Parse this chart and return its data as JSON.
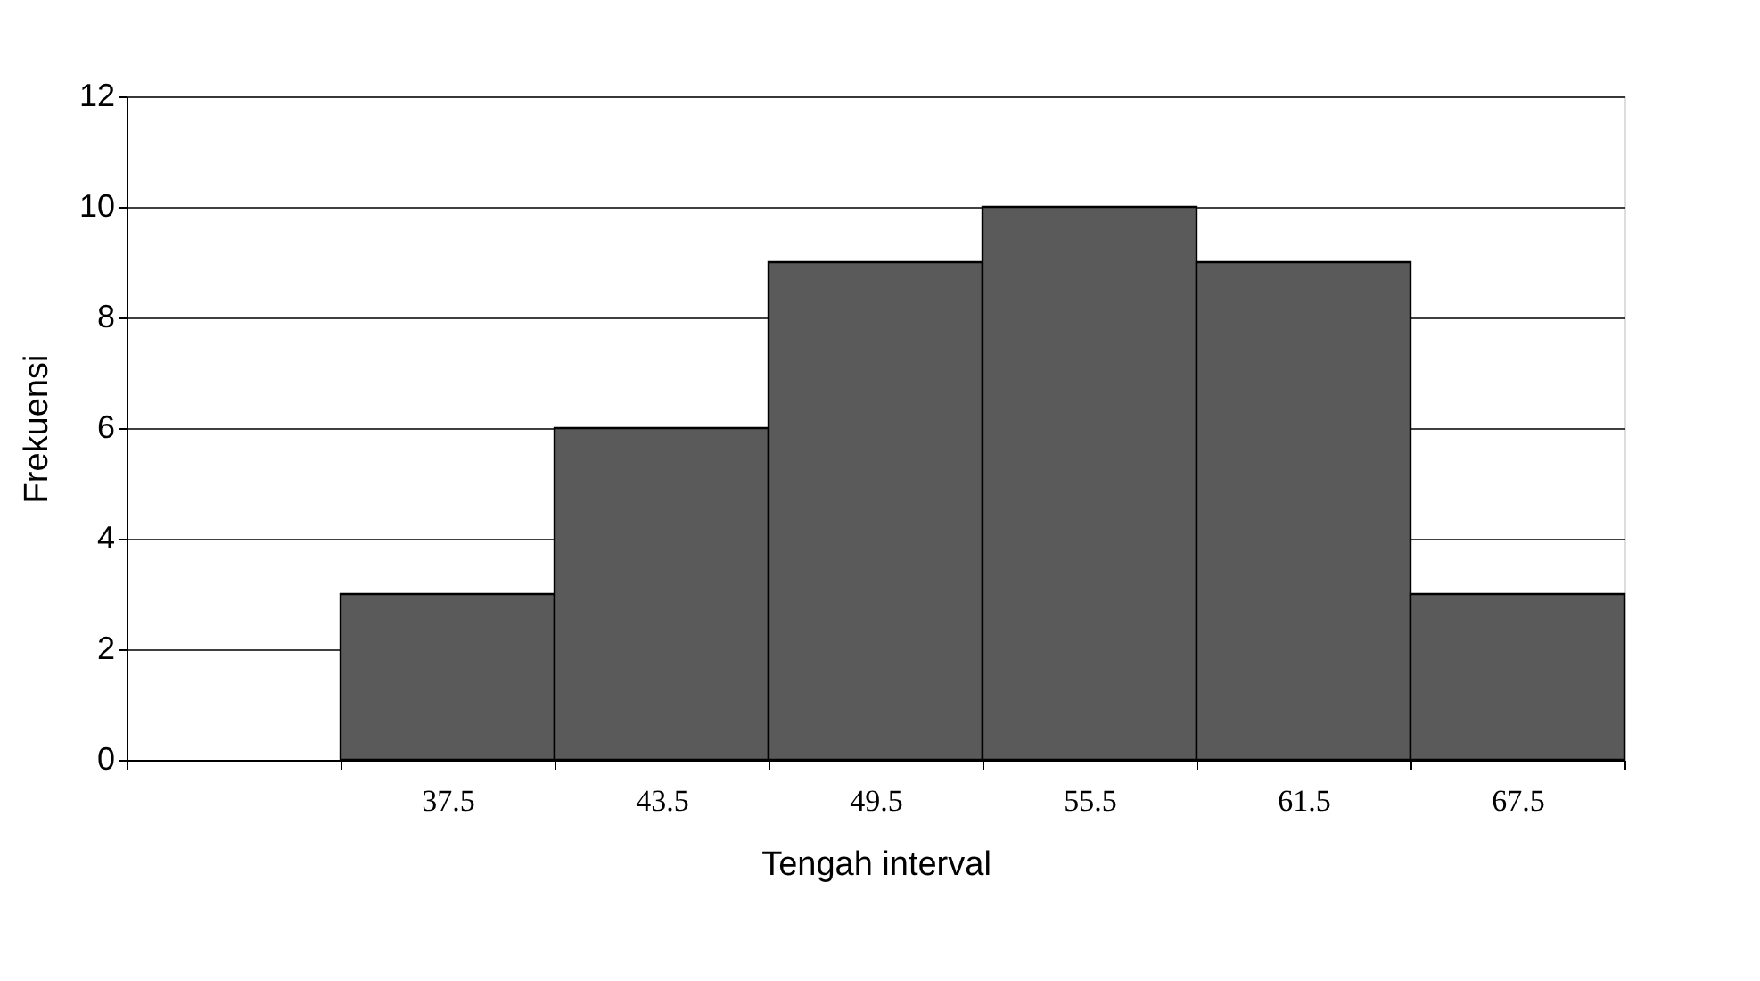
{
  "chart_data": {
    "type": "bar",
    "xlabel": "Tengah interval",
    "ylabel": "Frekuensi",
    "categories": [
      null,
      "37.5",
      "43.5",
      "49.5",
      "55.5",
      "61.5",
      "67.5"
    ],
    "values": [
      null,
      3,
      6,
      9,
      10,
      9,
      3
    ],
    "color": "#5a5a5a",
    "ylim": [
      0,
      12
    ],
    "yticks": [
      0,
      2,
      4,
      6,
      8,
      10,
      12
    ],
    "grid": "y"
  }
}
